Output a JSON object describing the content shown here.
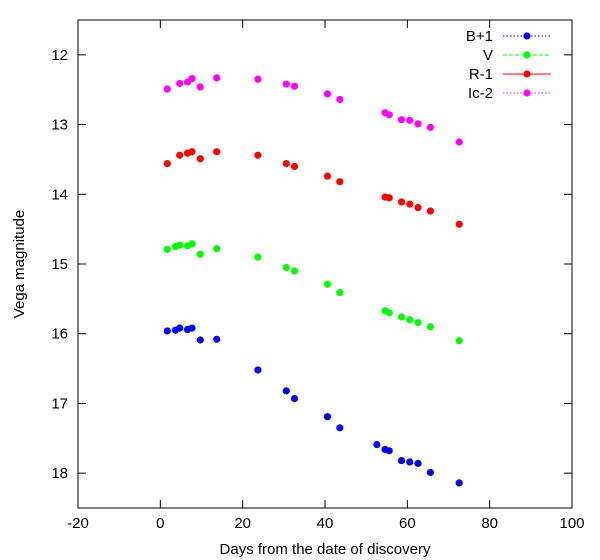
{
  "chart_data": {
    "type": "scatter",
    "title": "",
    "xlabel": "Days from the date of discovery",
    "ylabel": "Vega magnitude",
    "xlim": [
      -20,
      100
    ],
    "ylim": [
      11.5,
      18.5
    ],
    "y_inverted": true,
    "xticks": [
      -20,
      0,
      20,
      40,
      60,
      80,
      100
    ],
    "yticks": [
      12,
      13,
      14,
      15,
      16,
      17,
      18
    ],
    "legend_position": "top-right",
    "grid": false,
    "series": [
      {
        "name": "B+1",
        "color": "#0000ff",
        "line_style": "dotted",
        "points": [
          [
            1.7,
            15.96
          ],
          [
            3.7,
            15.95
          ],
          [
            4.7,
            15.92
          ],
          [
            6.6,
            15.94
          ],
          [
            7.7,
            15.92
          ],
          [
            9.7,
            16.09
          ],
          [
            13.7,
            16.08
          ],
          [
            23.7,
            16.52
          ],
          [
            30.6,
            16.82
          ],
          [
            32.6,
            16.93
          ],
          [
            40.6,
            17.19
          ],
          [
            43.6,
            17.35
          ],
          [
            52.6,
            17.59
          ],
          [
            54.6,
            17.66
          ],
          [
            55.6,
            17.68
          ],
          [
            58.6,
            17.82
          ],
          [
            60.6,
            17.84
          ],
          [
            62.6,
            17.86
          ],
          [
            65.6,
            17.99
          ],
          [
            72.6,
            18.14
          ]
        ]
      },
      {
        "name": "V",
        "color": "#00ff00",
        "line_style": "dashed",
        "points": [
          [
            1.7,
            14.79
          ],
          [
            3.7,
            14.75
          ],
          [
            4.7,
            14.73
          ],
          [
            6.6,
            14.74
          ],
          [
            7.7,
            14.71
          ],
          [
            9.7,
            14.86
          ],
          [
            13.7,
            14.78
          ],
          [
            23.7,
            14.9
          ],
          [
            30.6,
            15.05
          ],
          [
            32.6,
            15.1
          ],
          [
            40.6,
            15.29
          ],
          [
            43.6,
            15.41
          ],
          [
            54.6,
            15.67
          ],
          [
            55.6,
            15.7
          ],
          [
            58.6,
            15.76
          ],
          [
            60.6,
            15.8
          ],
          [
            62.6,
            15.84
          ],
          [
            65.6,
            15.9
          ],
          [
            72.6,
            16.1
          ]
        ]
      },
      {
        "name": "R-1",
        "color": "#ff0000",
        "line_style": "solid",
        "points": [
          [
            1.7,
            13.56
          ],
          [
            4.7,
            13.44
          ],
          [
            6.6,
            13.41
          ],
          [
            7.7,
            13.39
          ],
          [
            9.7,
            13.49
          ],
          [
            13.7,
            13.39
          ],
          [
            23.7,
            13.44
          ],
          [
            30.6,
            13.56
          ],
          [
            32.6,
            13.6
          ],
          [
            40.6,
            13.74
          ],
          [
            43.6,
            13.82
          ],
          [
            54.6,
            14.04
          ],
          [
            55.6,
            14.05
          ],
          [
            58.6,
            14.11
          ],
          [
            60.6,
            14.14
          ],
          [
            62.6,
            14.19
          ],
          [
            65.6,
            14.24
          ],
          [
            72.6,
            14.43
          ]
        ]
      },
      {
        "name": "Ic-2",
        "color": "#ff00ff",
        "line_style": "dotted",
        "points": [
          [
            1.7,
            12.49
          ],
          [
            4.7,
            12.41
          ],
          [
            6.6,
            12.39
          ],
          [
            7.7,
            12.34
          ],
          [
            9.7,
            12.46
          ],
          [
            13.7,
            12.33
          ],
          [
            23.7,
            12.35
          ],
          [
            30.6,
            12.42
          ],
          [
            32.6,
            12.45
          ],
          [
            40.6,
            12.56
          ],
          [
            43.6,
            12.64
          ],
          [
            54.6,
            12.83
          ],
          [
            55.6,
            12.86
          ],
          [
            58.6,
            12.93
          ],
          [
            60.6,
            12.94
          ],
          [
            62.6,
            12.99
          ],
          [
            65.6,
            13.04
          ],
          [
            72.6,
            13.25
          ]
        ]
      }
    ]
  }
}
